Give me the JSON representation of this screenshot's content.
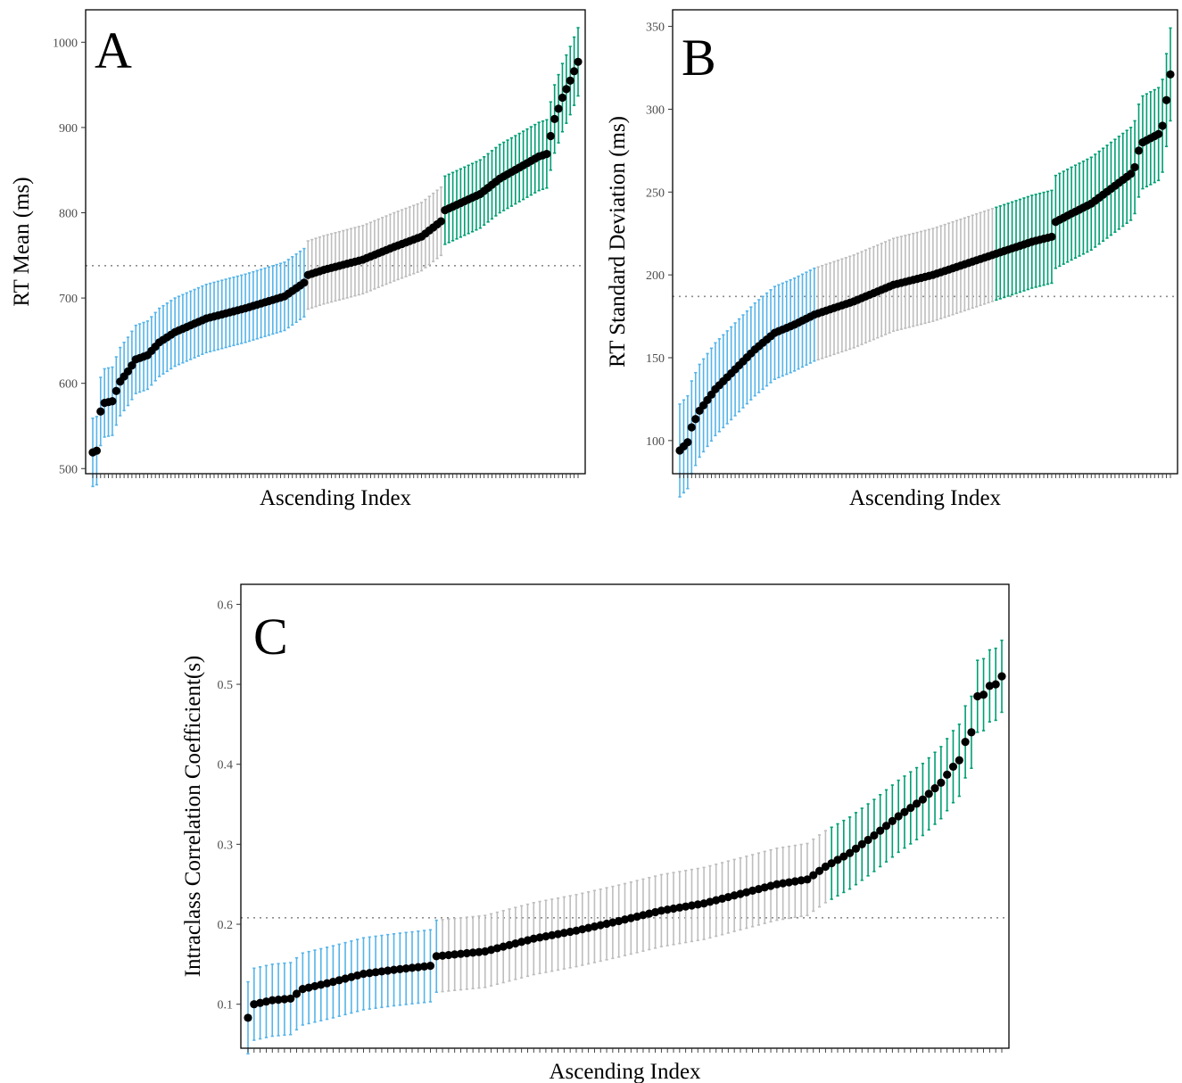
{
  "colors": {
    "low": "#56B4E9",
    "mid": "#BEBEBE",
    "high": "#009E73",
    "point": "#000000",
    "reference_line": "#8C8C8C",
    "frame": "#000000"
  },
  "chart_data": [
    {
      "type": "scatter",
      "panel_label": "A",
      "title": "",
      "xlabel": "Ascending Index",
      "ylabel": "RT Mean (ms)",
      "ylim": [
        494,
        1038
      ],
      "yticks": [
        500,
        600,
        700,
        800,
        900,
        1000
      ],
      "n_points": 125,
      "reference_line": 738,
      "errorbar_halfwidth": 40,
      "group_boundaries": [
        55,
        90
      ],
      "groups": [
        "low",
        "mid",
        "high"
      ],
      "grid": false,
      "legend": "none",
      "curve": [
        [
          1,
          519
        ],
        [
          2,
          521
        ],
        [
          3,
          567
        ],
        [
          4,
          577
        ],
        [
          6,
          579
        ],
        [
          7,
          591
        ],
        [
          8,
          602
        ],
        [
          10,
          614
        ],
        [
          12,
          628
        ],
        [
          15,
          633
        ],
        [
          18,
          648
        ],
        [
          22,
          660
        ],
        [
          30,
          676
        ],
        [
          40,
          688
        ],
        [
          50,
          702
        ],
        [
          55,
          718
        ],
        [
          56,
          727
        ],
        [
          60,
          733
        ],
        [
          70,
          745
        ],
        [
          78,
          760
        ],
        [
          85,
          772
        ],
        [
          90,
          790
        ],
        [
          91,
          803
        ],
        [
          100,
          822
        ],
        [
          105,
          840
        ],
        [
          110,
          853
        ],
        [
          115,
          866
        ],
        [
          117,
          869
        ],
        [
          118,
          890
        ],
        [
          119,
          910
        ],
        [
          120,
          922
        ],
        [
          121,
          935
        ],
        [
          122,
          945
        ],
        [
          123,
          955
        ],
        [
          124,
          966
        ],
        [
          125,
          977
        ]
      ]
    },
    {
      "type": "scatter",
      "panel_label": "B",
      "title": "",
      "xlabel": "Ascending Index",
      "ylabel": "RT Standard Deviation (ms)",
      "ylim": [
        80,
        360
      ],
      "yticks": [
        100,
        150,
        200,
        250,
        300,
        350
      ],
      "n_points": 125,
      "reference_line": 187,
      "errorbar_halfwidth": 28,
      "group_boundaries": [
        35,
        80
      ],
      "groups": [
        "low",
        "mid",
        "high"
      ],
      "grid": false,
      "legend": "none",
      "curve": [
        [
          1,
          94
        ],
        [
          3,
          99
        ],
        [
          4,
          108
        ],
        [
          6,
          118
        ],
        [
          10,
          131
        ],
        [
          15,
          143
        ],
        [
          20,
          155
        ],
        [
          25,
          165
        ],
        [
          30,
          170
        ],
        [
          35,
          176
        ],
        [
          45,
          184
        ],
        [
          55,
          194
        ],
        [
          65,
          200
        ],
        [
          75,
          208
        ],
        [
          80,
          212
        ],
        [
          90,
          220
        ],
        [
          95,
          223
        ],
        [
          96,
          232
        ],
        [
          100,
          237
        ],
        [
          105,
          243
        ],
        [
          110,
          252
        ],
        [
          115,
          261
        ],
        [
          116,
          265
        ],
        [
          117,
          275
        ],
        [
          118,
          280
        ],
        [
          122,
          285
        ],
        [
          123,
          290
        ],
        [
          125,
          321
        ]
      ]
    },
    {
      "type": "scatter",
      "panel_label": "C",
      "title": "",
      "xlabel": "Ascending Index",
      "ylabel": "Intraclass Correlation Coefficient(s)",
      "ylim": [
        0.045,
        0.625
      ],
      "yticks": [
        0.1,
        0.2,
        0.3,
        0.4,
        0.5,
        0.6
      ],
      "ytick_labels": [
        "0.1",
        "0.2",
        "0.3",
        "0.4",
        "0.5",
        "0.6"
      ],
      "n_points": 125,
      "reference_line": 0.208,
      "errorbar_halfwidth": 0.045,
      "group_boundaries": [
        32,
        96
      ],
      "groups": [
        "low",
        "mid",
        "high"
      ],
      "grid": false,
      "legend": "none",
      "curve": [
        [
          1,
          0.083
        ],
        [
          2,
          0.1
        ],
        [
          5,
          0.105
        ],
        [
          8,
          0.107
        ],
        [
          10,
          0.119
        ],
        [
          15,
          0.128
        ],
        [
          20,
          0.138
        ],
        [
          25,
          0.143
        ],
        [
          31,
          0.148
        ],
        [
          32,
          0.16
        ],
        [
          40,
          0.166
        ],
        [
          48,
          0.182
        ],
        [
          55,
          0.192
        ],
        [
          62,
          0.204
        ],
        [
          69,
          0.217
        ],
        [
          76,
          0.226
        ],
        [
          82,
          0.238
        ],
        [
          88,
          0.25
        ],
        [
          93,
          0.256
        ],
        [
          96,
          0.272
        ],
        [
          100,
          0.289
        ],
        [
          104,
          0.311
        ],
        [
          108,
          0.335
        ],
        [
          112,
          0.356
        ],
        [
          115,
          0.377
        ],
        [
          117,
          0.397
        ],
        [
          118,
          0.405
        ],
        [
          119,
          0.428
        ],
        [
          120,
          0.44
        ],
        [
          121,
          0.485
        ],
        [
          122,
          0.487
        ],
        [
          123,
          0.498
        ],
        [
          124,
          0.5
        ],
        [
          125,
          0.51
        ]
      ]
    }
  ]
}
